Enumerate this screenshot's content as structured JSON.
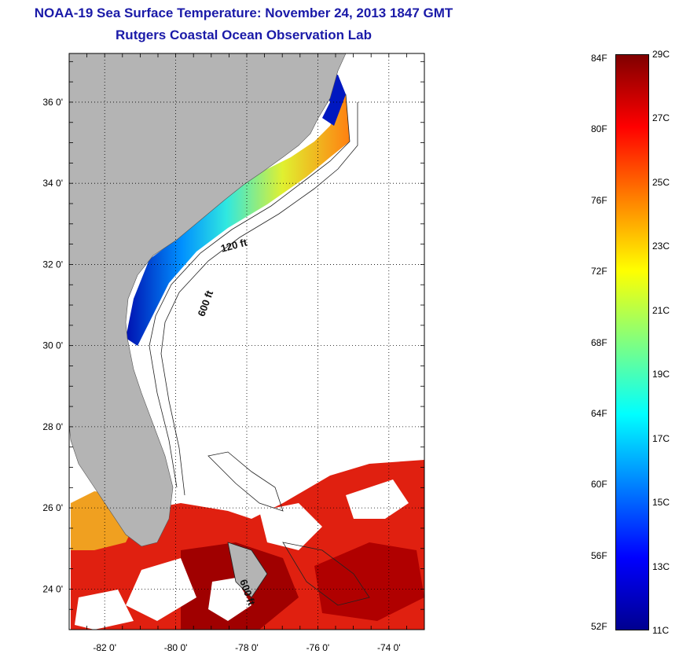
{
  "title_line1": "NOAA-19 Sea Surface Temperature:  November 24, 2013 1847 GMT",
  "title_line2": "Rutgers Coastal Ocean Observation Lab",
  "map": {
    "lon_range": [
      -83,
      -73
    ],
    "lat_range": [
      23,
      37.2
    ],
    "lon_ticks": [
      -82,
      -80,
      -78,
      -76,
      -74
    ],
    "lat_ticks": [
      24,
      26,
      28,
      30,
      32,
      34,
      36
    ],
    "lon_tick_labels": [
      "-82 0'",
      "-80 0'",
      "-78 0'",
      "-76 0'",
      "-74 0'"
    ],
    "lat_tick_labels": [
      "24 0'",
      "26 0'",
      "28 0'",
      "30 0'",
      "32 0'",
      "34 0'",
      "36 0'"
    ],
    "grid": "dotted",
    "land_color": "#b4b4b4",
    "isobath_labels": [
      {
        "text": "120 ft",
        "lon": -78.7,
        "lat": 32.3
      },
      {
        "text": "600 ft",
        "lon": -79.2,
        "lat": 30.7
      },
      {
        "text": "600 ft",
        "lon": -78.2,
        "lat": 24.2
      }
    ]
  },
  "colorbar": {
    "range_c": [
      11,
      29
    ],
    "celsius_labels": [
      "29C",
      "27C",
      "25C",
      "23C",
      "21C",
      "19C",
      "17C",
      "15C",
      "13C",
      "11C"
    ],
    "celsius_values": [
      29,
      27,
      25,
      23,
      21,
      19,
      17,
      15,
      13,
      11
    ],
    "fahrenheit_labels": [
      "84F",
      "80F",
      "76F",
      "72F",
      "68F",
      "64F",
      "60F",
      "56F",
      "52F"
    ],
    "fahrenheit_values": [
      84,
      80,
      76,
      72,
      68,
      64,
      60,
      56,
      52
    ],
    "colors": [
      "#000090",
      "#0000ff",
      "#0080ff",
      "#00ffff",
      "#80ff80",
      "#ffff00",
      "#ff8000",
      "#ff0000",
      "#800000"
    ]
  }
}
